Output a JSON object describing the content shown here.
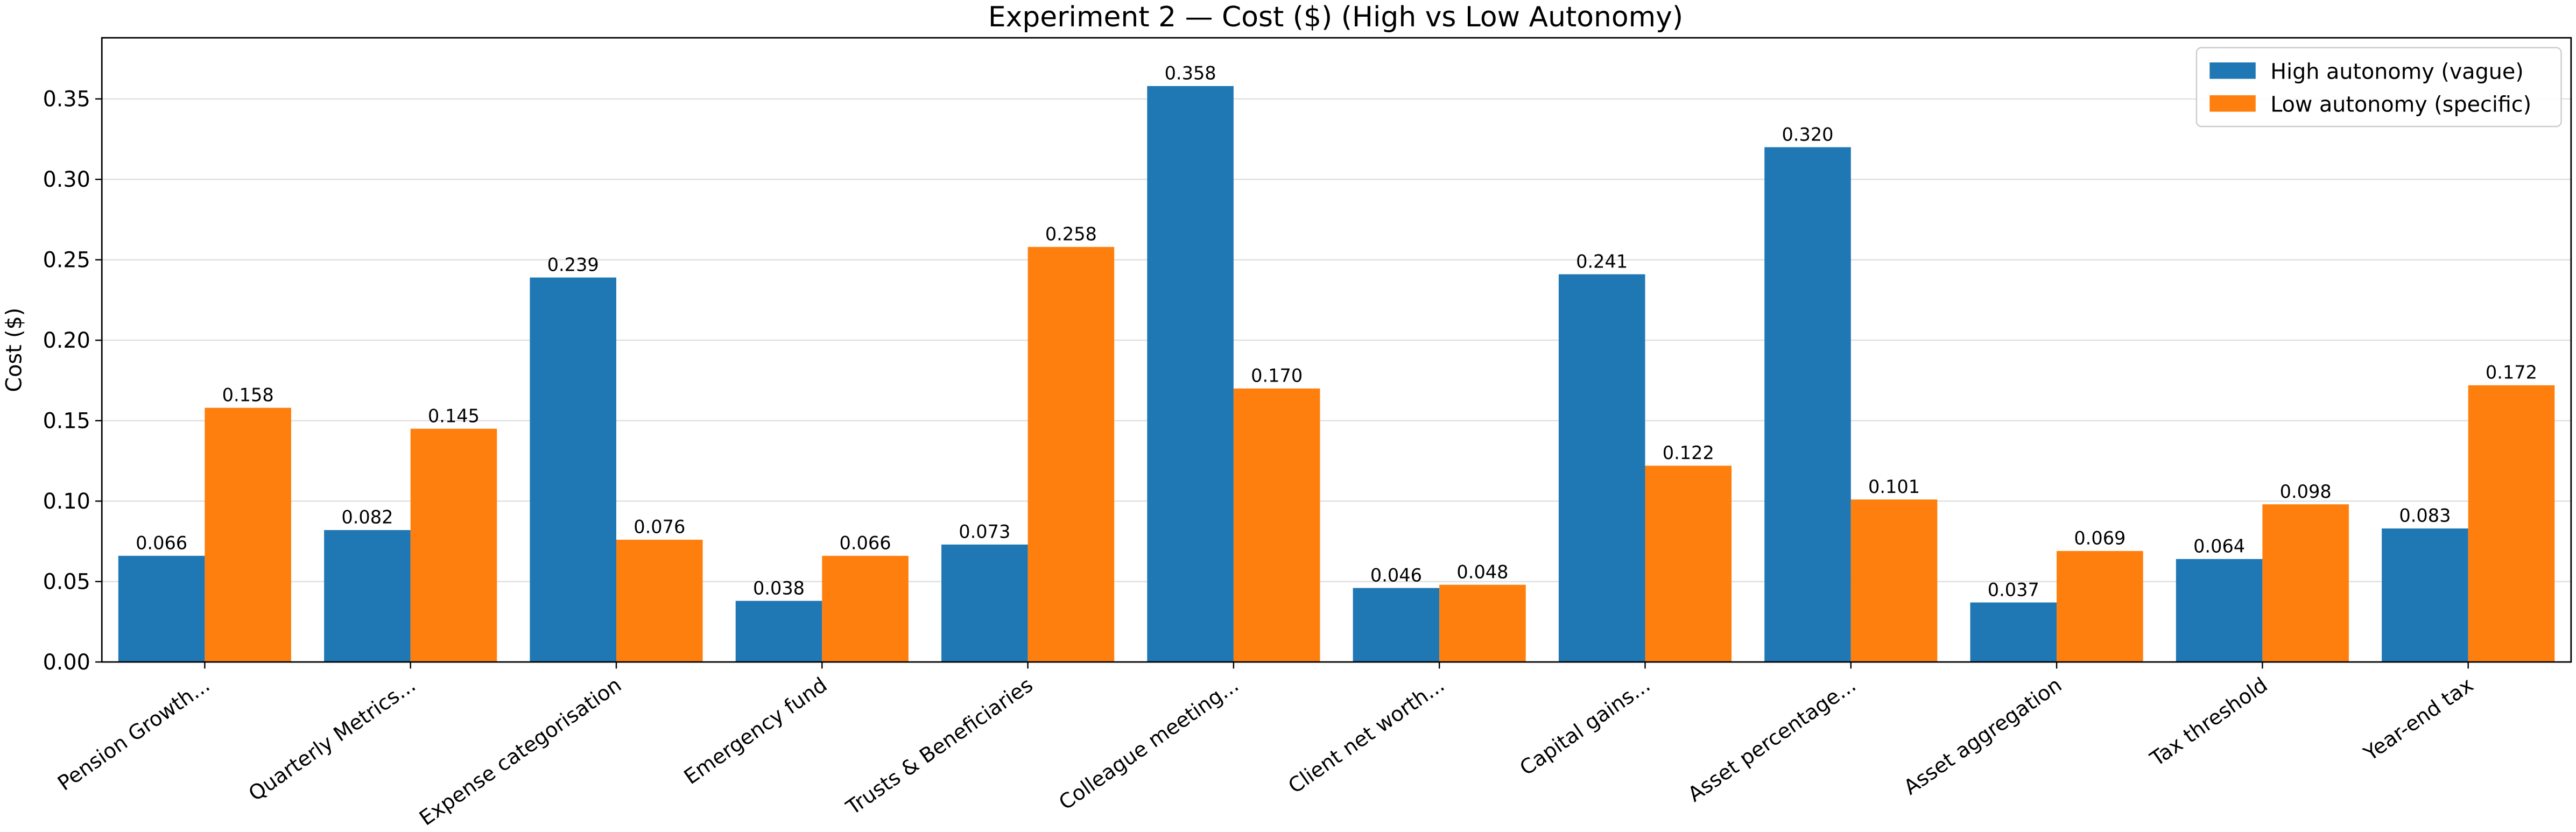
{
  "chart_data": {
    "type": "bar",
    "title": "Experiment 2 — Cost ($) (High vs Low Autonomy)",
    "y_label": "Cost ($)",
    "categories": [
      "Pension Growth...",
      "Quarterly Metrics...",
      "Expense categorisation",
      "Emergency fund",
      "Trusts & Beneficiaries",
      "Colleague meeting...",
      "Client net worth...",
      "Capital gains...",
      "Asset percentage...",
      "Asset aggregation",
      "Tax threshold",
      "Year-end tax"
    ],
    "series": [
      {
        "name": "High autonomy (vague)",
        "color": "#1f77b4",
        "values": [
          0.066,
          0.082,
          0.239,
          0.038,
          0.073,
          0.358,
          0.046,
          0.241,
          0.32,
          0.037,
          0.064,
          0.083
        ],
        "value_labels": [
          "0.066",
          "0.082",
          "0.239",
          "0.038",
          "0.073",
          "0.358",
          "0.046",
          "0.241",
          "0.320",
          "0.037",
          "0.064",
          "0.083"
        ]
      },
      {
        "name": "Low autonomy (specific)",
        "color": "#ff7f0e",
        "values": [
          0.158,
          0.145,
          0.076,
          0.066,
          0.258,
          0.17,
          0.048,
          0.122,
          0.101,
          0.069,
          0.098,
          0.172
        ],
        "value_labels": [
          "0.158",
          "0.145",
          "0.076",
          "0.066",
          "0.258",
          "0.170",
          "0.048",
          "0.122",
          "0.101",
          "0.069",
          "0.098",
          "0.172"
        ]
      }
    ],
    "ylim": [
      0,
      0.388
    ],
    "yticks": [
      {
        "value": 0,
        "label": "0.00"
      },
      {
        "value": 0.05,
        "label": "0.05"
      },
      {
        "value": 0.1,
        "label": "0.10"
      },
      {
        "value": 0.15,
        "label": "0.15"
      },
      {
        "value": 0.2,
        "label": "0.20"
      },
      {
        "value": 0.25,
        "label": "0.25"
      },
      {
        "value": 0.3,
        "label": "0.30"
      },
      {
        "value": 0.35,
        "label": "0.35"
      }
    ],
    "grid": true,
    "legend": "upper right"
  }
}
